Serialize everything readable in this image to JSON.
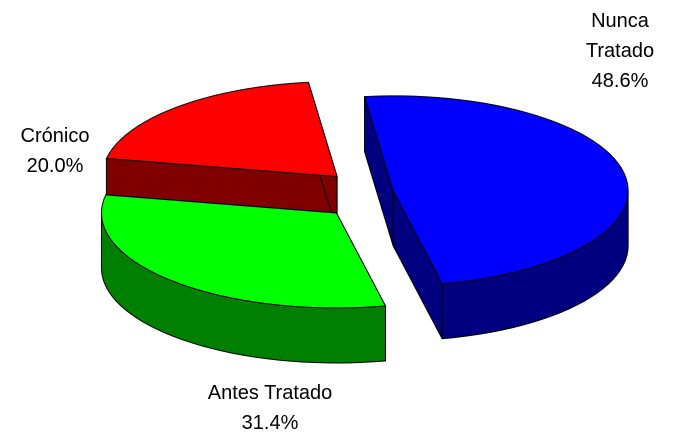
{
  "chart_data": {
    "type": "pie",
    "categories": [
      "Nunca Tratado",
      "Antes Tratado",
      "Crónico"
    ],
    "values": [
      48.6,
      31.4,
      20.0
    ],
    "value_labels": [
      "48.6%",
      "31.4%",
      "20.0%"
    ],
    "colors": [
      "#0000ff",
      "#00ff00",
      "#ff0000"
    ],
    "side_colors": [
      "#000080",
      "#008000",
      "#800000"
    ],
    "exploded": true,
    "three_d": true
  }
}
